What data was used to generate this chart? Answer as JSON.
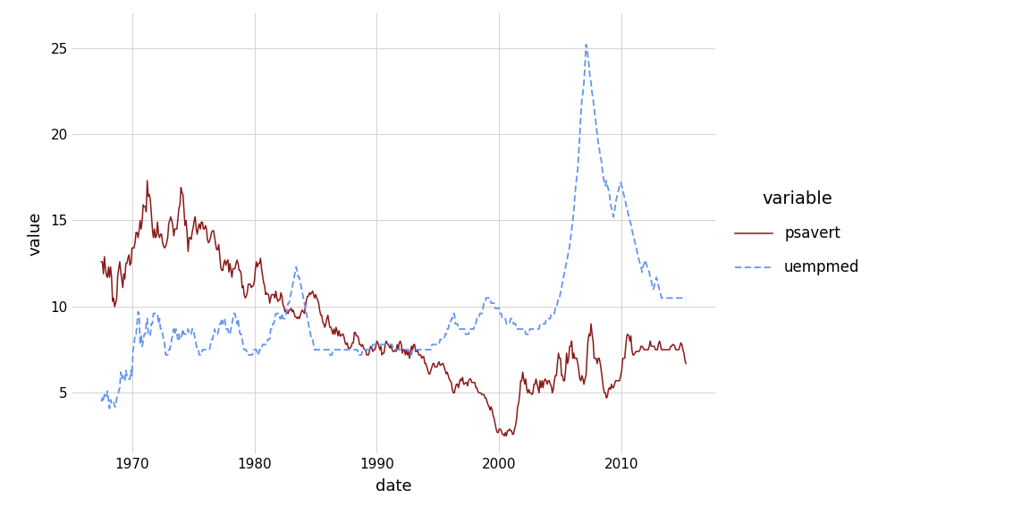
{
  "title": "",
  "xlabel": "date",
  "ylabel": "value",
  "legend_title": "variable",
  "series": [
    {
      "name": "psavert",
      "color": "#8B1A1A",
      "linestyle": "-",
      "linewidth": 1.1,
      "dashes": null
    },
    {
      "name": "uempmed",
      "color": "#6495ED",
      "linestyle": "--",
      "linewidth": 1.3,
      "dashes": [
        4,
        2
      ]
    }
  ],
  "background_color": "#FFFFFF",
  "panel_background": "#FFFFFF",
  "grid_color": "#D3D3D3",
  "ylim": [
    1.5,
    27
  ],
  "yticks": [
    5,
    10,
    15,
    20,
    25
  ],
  "xtick_years": [
    1970,
    1980,
    1990,
    2000,
    2010
  ],
  "label_fontsize": 13,
  "tick_fontsize": 11,
  "legend_fontsize": 13
}
